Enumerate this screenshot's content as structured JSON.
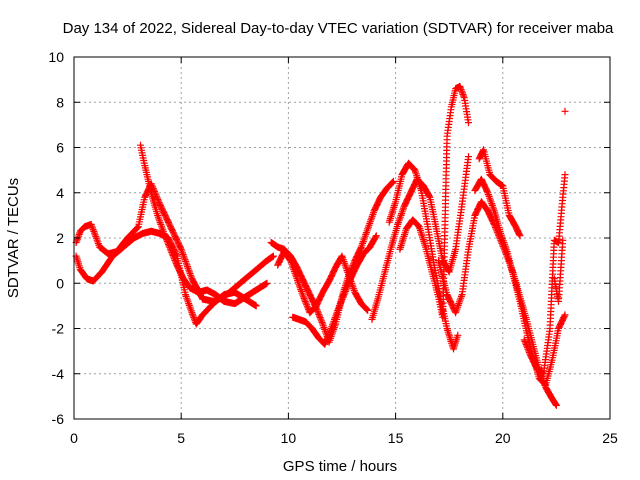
{
  "chart_data": {
    "type": "scatter",
    "title": "Day 134 of 2022, Sidereal Day-to-day VTEC variation (SDTVAR) for receiver maba",
    "xlabel": "GPS time / hours",
    "ylabel": "SDTVAR / TECUs",
    "xlim": [
      0,
      25
    ],
    "ylim": [
      -6,
      10
    ],
    "xticks": [
      0,
      5,
      10,
      15,
      20,
      25
    ],
    "yticks": [
      -6,
      -4,
      -2,
      0,
      2,
      4,
      6,
      8,
      10
    ],
    "grid": true,
    "marker": "plus",
    "color": "#ff0000",
    "series": [
      {
        "name": "track-1",
        "x": [
          0.1,
          0.3,
          0.5,
          0.8,
          1.2,
          1.6,
          2.0,
          2.5,
          3.0,
          3.3,
          3.6,
          4.0,
          4.5,
          5.0,
          5.5,
          6.0,
          6.5,
          7.0,
          7.5,
          8.0,
          8.5,
          9.0,
          9.3
        ],
        "y": [
          1.8,
          2.3,
          2.5,
          2.6,
          1.6,
          1.3,
          1.4,
          2.0,
          2.5,
          3.8,
          4.4,
          3.5,
          2.5,
          1.5,
          0.2,
          -0.7,
          -0.8,
          -0.6,
          -0.2,
          0.2,
          0.6,
          1.0,
          1.2
        ]
      },
      {
        "name": "track-2",
        "x": [
          0.1,
          0.3,
          0.6,
          0.9,
          1.3,
          1.8,
          2.3,
          2.8,
          3.2,
          3.6,
          4.0,
          4.4,
          4.8,
          5.2,
          5.5,
          5.7,
          6.0,
          6.5,
          7.0,
          7.5,
          8.0,
          8.5
        ],
        "y": [
          1.2,
          0.6,
          0.2,
          0.1,
          0.5,
          1.2,
          1.6,
          2.0,
          2.2,
          2.3,
          2.2,
          2.0,
          1.2,
          -0.5,
          -1.3,
          -1.8,
          -1.4,
          -0.9,
          -0.5,
          -0.4,
          -0.7,
          -1.0
        ]
      },
      {
        "name": "track-3",
        "x": [
          3.1,
          3.3,
          3.6,
          3.9,
          4.2,
          4.5,
          4.8,
          5.1,
          5.4,
          5.8,
          6.2,
          6.6,
          7.0,
          7.5,
          8.0,
          8.5,
          9.0
        ],
        "y": [
          6.1,
          5.2,
          4.0,
          3.0,
          2.2,
          1.5,
          0.8,
          0.2,
          -0.2,
          -0.4,
          -0.3,
          -0.5,
          -0.8,
          -0.9,
          -0.6,
          -0.3,
          0.0
        ]
      },
      {
        "name": "track-4",
        "x": [
          9.2,
          9.5,
          9.8,
          10.1,
          10.4,
          10.7,
          11.0,
          11.3,
          11.6,
          11.9,
          12.2,
          12.5,
          12.8,
          13.1,
          13.4,
          13.7,
          14.0,
          14.3,
          14.6,
          14.9
        ],
        "y": [
          1.8,
          1.6,
          1.5,
          1.2,
          0.7,
          0.1,
          -0.5,
          -1.1,
          -1.8,
          -2.6,
          -1.8,
          -0.6,
          0.3,
          1.0,
          1.6,
          2.4,
          3.2,
          3.8,
          4.2,
          4.5
        ]
      },
      {
        "name": "track-5",
        "x": [
          9.5,
          9.8,
          10.1,
          10.4,
          10.7,
          11.0,
          11.3,
          11.6,
          11.9,
          12.2,
          12.5,
          12.8,
          13.1,
          13.4,
          13.7
        ],
        "y": [
          0.8,
          1.4,
          1.0,
          0.2,
          -0.6,
          -1.3,
          -1.0,
          -0.4,
          0.1,
          0.7,
          1.2,
          0.4,
          -0.4,
          -0.9,
          -1.2
        ]
      },
      {
        "name": "track-6",
        "x": [
          10.2,
          10.5,
          10.8,
          11.1,
          11.4,
          11.7,
          12.0,
          12.3,
          12.6,
          12.9,
          13.2,
          13.5,
          13.8,
          14.1
        ],
        "y": [
          -1.5,
          -1.6,
          -1.7,
          -2.0,
          -2.4,
          -2.7,
          -2.0,
          -1.2,
          -0.5,
          0.2,
          0.8,
          1.3,
          1.6,
          2.1
        ]
      },
      {
        "name": "track-7",
        "x": [
          13.9,
          14.2,
          14.5,
          14.8,
          15.1,
          15.4,
          15.7,
          16.0,
          16.3,
          16.6,
          16.9,
          17.2,
          17.5,
          17.8,
          18.1,
          18.4
        ],
        "y": [
          -1.6,
          -0.6,
          0.5,
          1.6,
          2.6,
          3.4,
          4.0,
          4.6,
          4.3,
          3.8,
          2.4,
          1.0,
          0.5,
          1.5,
          3.5,
          5.6
        ]
      },
      {
        "name": "track-8",
        "x": [
          14.7,
          15.0,
          15.3,
          15.6,
          15.9,
          16.2,
          16.5,
          16.8,
          17.1,
          17.4,
          17.7,
          17.9
        ],
        "y": [
          2.7,
          3.6,
          4.8,
          5.3,
          5.0,
          4.1,
          2.5,
          0.8,
          -0.7,
          -2.0,
          -2.9,
          -2.3
        ]
      },
      {
        "name": "track-9",
        "x": [
          15.2,
          15.5,
          15.8,
          16.1,
          16.4,
          16.7,
          17.0,
          17.2,
          17.4,
          17.6,
          17.8,
          18.0,
          18.2,
          18.4
        ],
        "y": [
          1.5,
          2.4,
          2.8,
          2.5,
          1.6,
          0.5,
          -0.6,
          -1.5,
          6.5,
          7.8,
          8.6,
          8.7,
          8.2,
          7.1
        ]
      },
      {
        "name": "track-10",
        "x": [
          17.0,
          17.4,
          17.8,
          18.1,
          18.4,
          18.7,
          19.0,
          19.3,
          19.6,
          19.9,
          20.2,
          20.5,
          20.8,
          21.1,
          21.4,
          21.7,
          22.0,
          22.3,
          22.5
        ],
        "y": [
          1.0,
          -0.5,
          -1.3,
          -0.5,
          1.5,
          3.0,
          3.6,
          3.2,
          2.6,
          1.9,
          1.2,
          0.4,
          -0.6,
          -1.6,
          -2.7,
          -3.8,
          -4.6,
          -5.1,
          -5.4
        ]
      },
      {
        "name": "track-11",
        "x": [
          18.9,
          19.1,
          19.4,
          19.7,
          20.0,
          20.3,
          20.6,
          20.8
        ],
        "y": [
          5.5,
          5.9,
          4.8,
          4.5,
          4.3,
          3.0,
          2.5,
          2.1
        ]
      },
      {
        "name": "track-12",
        "x": [
          18.7,
          19.0,
          19.3,
          19.6,
          19.9,
          20.2,
          20.5,
          20.8,
          21.1,
          21.4,
          21.7,
          22.0,
          22.3,
          22.6,
          22.9
        ],
        "y": [
          4.1,
          4.6,
          4.0,
          3.2,
          2.2,
          1.4,
          0.3,
          -0.8,
          -2.1,
          -3.2,
          -4.2,
          -4.5,
          -3.4,
          -2.0,
          -1.4
        ]
      },
      {
        "name": "track-13",
        "x": [
          21.0,
          21.3,
          21.6,
          21.9,
          22.2,
          22.4,
          22.6,
          22.8,
          22.9
        ],
        "y": [
          -2.5,
          -3.2,
          -3.8,
          -4.0,
          -2.0,
          1.9,
          1.8,
          3.8,
          4.8
        ]
      },
      {
        "name": "track-14",
        "x": [
          22.4,
          22.6,
          22.8
        ],
        "y": [
          0.2,
          -0.8,
          1.9
        ]
      },
      {
        "name": "track-15",
        "x": [
          22.9
        ],
        "y": [
          7.6
        ]
      }
    ]
  }
}
